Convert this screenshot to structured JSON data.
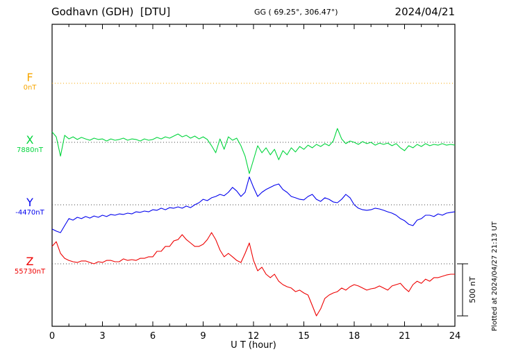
{
  "header": {
    "station_title": "Godhavn (GDH)  [DTU]",
    "gg_coords": "GG ( 69.25°, 306.47°)",
    "date": "2024/04/21"
  },
  "axis": {
    "xlabel": "U T (hour)"
  },
  "annotations": {
    "plotted_at": "Plotted at 2024/04/27 21:13 UT",
    "scale_bar_label": "500 nT"
  },
  "colors": {
    "f": "#f7a600",
    "x": "#00d53c",
    "y": "#0000ee",
    "z": "#ee0000",
    "axis": "#000000",
    "baseline_dots": "#444444"
  },
  "chart_data": {
    "type": "line",
    "title": "Godhavn (GDH) [DTU] magnetogram",
    "date": "2024/04/21",
    "xlabel": "U T (hour)",
    "ylabel": "",
    "x_range_hours": [
      0,
      24
    ],
    "x_ticks": [
      0,
      3,
      6,
      9,
      12,
      15,
      18,
      21,
      24
    ],
    "x_minor_tick_hours": 1,
    "grid": false,
    "legend": "left-margin component labels",
    "scale_bar_nT": 500,
    "series": [
      {
        "name": "F",
        "color": "#f7a600",
        "baseline_label": "0nT",
        "baseline_nT": 0,
        "style": "baseline-only",
        "baseline_color": "#f7a600",
        "values_rel_nT": [
          0,
          0
        ]
      },
      {
        "name": "X",
        "color": "#00d53c",
        "baseline_label": "7880nT",
        "baseline_nT": 7880,
        "style": "solid",
        "baseline_color": "#444444",
        "values_rel_nT": [
          100,
          53,
          -133,
          67,
          33,
          53,
          27,
          47,
          33,
          20,
          40,
          27,
          33,
          13,
          33,
          20,
          27,
          40,
          20,
          33,
          27,
          13,
          33,
          20,
          27,
          47,
          33,
          53,
          40,
          60,
          80,
          53,
          67,
          40,
          60,
          33,
          53,
          27,
          -33,
          -100,
          33,
          -67,
          53,
          20,
          40,
          -33,
          -133,
          -300,
          -167,
          -33,
          -100,
          -53,
          -120,
          -67,
          -167,
          -80,
          -120,
          -53,
          -93,
          -40,
          -67,
          -27,
          -53,
          -20,
          -40,
          -13,
          -33,
          13,
          133,
          33,
          -13,
          13,
          0,
          -20,
          7,
          -13,
          0,
          -27,
          -7,
          -20,
          -7,
          -33,
          -13,
          -53,
          -80,
          -33,
          -53,
          -20,
          -40,
          -13,
          -33,
          -20,
          -27,
          -13,
          -27,
          -20,
          -27
        ]
      },
      {
        "name": "Y",
        "color": "#0000ee",
        "baseline_label": "-4470nT",
        "baseline_nT": -4470,
        "style": "solid",
        "baseline_color": "#444444",
        "values_rel_nT": [
          -233,
          -253,
          -267,
          -200,
          -133,
          -147,
          -120,
          -133,
          -113,
          -127,
          -107,
          -120,
          -100,
          -113,
          -93,
          -100,
          -87,
          -93,
          -80,
          -87,
          -67,
          -73,
          -60,
          -67,
          -47,
          -53,
          -33,
          -47,
          -27,
          -33,
          -20,
          -33,
          -13,
          -27,
          0,
          20,
          53,
          40,
          67,
          80,
          100,
          87,
          120,
          167,
          133,
          80,
          120,
          267,
          167,
          80,
          120,
          147,
          167,
          187,
          200,
          147,
          120,
          80,
          67,
          53,
          47,
          80,
          100,
          53,
          33,
          67,
          53,
          27,
          20,
          53,
          100,
          67,
          0,
          -33,
          -47,
          -53,
          -47,
          -33,
          -40,
          -53,
          -67,
          -80,
          -100,
          -133,
          -153,
          -187,
          -200,
          -147,
          -133,
          -100,
          -100,
          -113,
          -87,
          -100,
          -80,
          -73,
          -67
        ]
      },
      {
        "name": "Z",
        "color": "#ee0000",
        "baseline_label": "55730nT",
        "baseline_nT": 55730,
        "style": "solid",
        "baseline_color": "#444444",
        "values_rel_nT": [
          167,
          213,
          100,
          53,
          33,
          20,
          13,
          27,
          27,
          13,
          0,
          20,
          13,
          33,
          33,
          20,
          20,
          47,
          33,
          40,
          33,
          53,
          53,
          67,
          67,
          120,
          120,
          167,
          167,
          220,
          233,
          280,
          233,
          200,
          167,
          167,
          187,
          233,
          300,
          233,
          133,
          67,
          100,
          67,
          33,
          13,
          100,
          200,
          33,
          -67,
          -33,
          -100,
          -133,
          -100,
          -167,
          -200,
          -220,
          -233,
          -267,
          -253,
          -280,
          -300,
          -400,
          -500,
          -433,
          -333,
          -300,
          -280,
          -267,
          -233,
          -253,
          -220,
          -200,
          -213,
          -233,
          -253,
          -240,
          -233,
          -213,
          -233,
          -253,
          -213,
          -200,
          -187,
          -233,
          -267,
          -200,
          -167,
          -187,
          -147,
          -167,
          -133,
          -133,
          -120,
          -107,
          -100,
          -100
        ]
      }
    ]
  }
}
